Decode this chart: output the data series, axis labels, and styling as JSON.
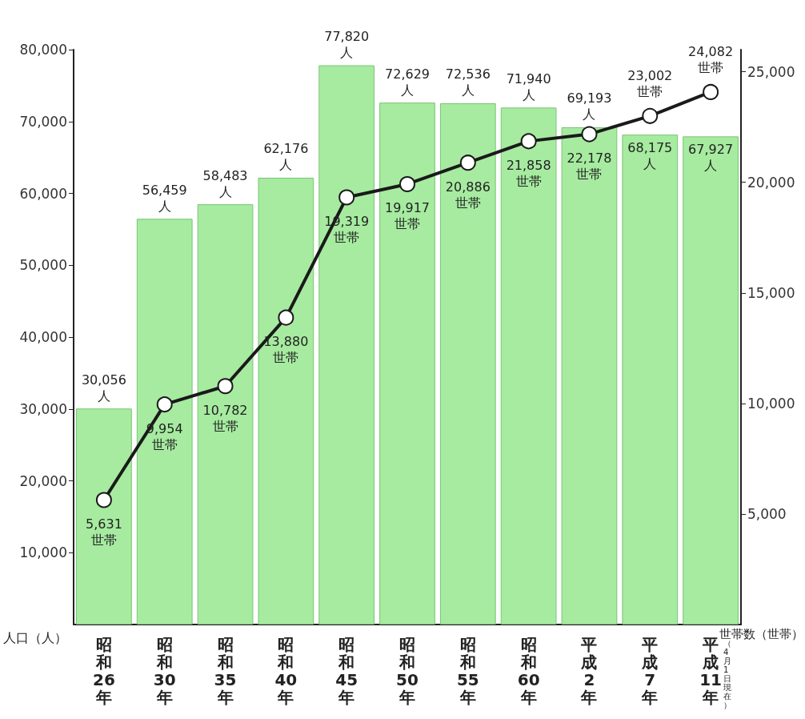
{
  "chart_data": {
    "type": "bar",
    "categories": [
      "昭和26年",
      "昭和30年",
      "昭和35年",
      "昭和40年",
      "昭和45年",
      "昭和50年",
      "昭和55年",
      "昭和60年",
      "平成2年",
      "平成7年",
      "平成11年"
    ],
    "series": [
      {
        "color": "#a6eba0",
        "values": [
          30056,
          56459,
          58483,
          62176,
          77820,
          72629,
          72536,
          71940,
          69193,
          68175,
          67927
        ],
        "value_labels": [
          "30,056\n人",
          "56,459\n人",
          "58,483\n人",
          "62,176\n人",
          "77,820\n人",
          "72,629\n人",
          "72,536\n人",
          "71,940\n人",
          "69,193\n人",
          "68,175\n人",
          "67,927\n人"
        ]
      },
      {
        "type": "line",
        "axis": "y2",
        "color": "#1a1a1a",
        "marker": "circle",
        "values": [
          5631,
          9954,
          10782,
          13880,
          19319,
          19917,
          20886,
          21858,
          22178,
          23002,
          24082
        ],
        "value_labels": [
          "5,631\n世帯",
          "9,954\n世帯",
          "10,782\n世帯",
          "13,880\n世帯",
          "19,319\n世帯",
          "19,917\n世帯",
          "20,886\n世帯",
          "21,858\n世帯",
          "22,178\n世帯",
          "23,002\n世帯",
          "24,082\n世帯"
        ]
      }
    ],
    "ylabel": "人口（人）",
    "y2label": "世帯数（世帯）",
    "ylim": [
      0,
      80000
    ],
    "yticks": [
      {
        "value": 10000,
        "label": "10,000"
      },
      {
        "value": 20000,
        "label": "20,000"
      },
      {
        "value": 30000,
        "label": "30,000"
      },
      {
        "value": 40000,
        "label": "40,000"
      },
      {
        "value": 50000,
        "label": "50,000"
      },
      {
        "value": 60000,
        "label": "60,000"
      },
      {
        "value": 70000,
        "label": "70,000"
      },
      {
        "value": 80000,
        "label": "80,000"
      }
    ],
    "y2lim": [
      0,
      26000
    ],
    "y2ticks": [
      {
        "value": 5000,
        "label": "5,000"
      },
      {
        "value": 10000,
        "label": "10,000"
      },
      {
        "value": 15000,
        "label": "15,000"
      },
      {
        "value": 20000,
        "label": "20,000"
      },
      {
        "value": 25000,
        "label": "25,000"
      }
    ],
    "annotations": [
      "（4月1日現在）"
    ],
    "grid": false
  }
}
